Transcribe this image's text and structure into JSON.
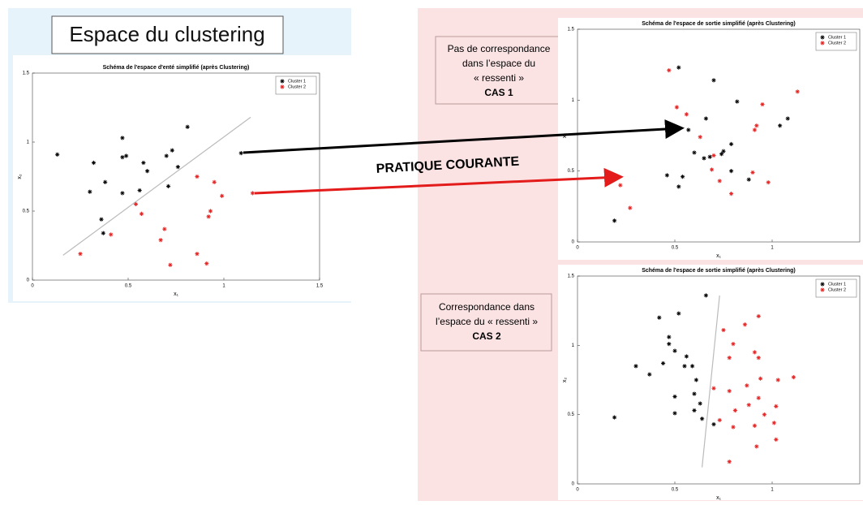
{
  "slide": {
    "heading": "Espace du clustering",
    "arrow_label": "PRATIQUE COURANTE",
    "cases": [
      {
        "lines": [
          "Pas de correspondance",
          "dans l’espace du",
          "« ressenti »"
        ],
        "label": "CAS 1"
      },
      {
        "lines": [
          "Correspondance dans",
          "l’espace du « ressenti »"
        ],
        "label": "CAS 2"
      }
    ]
  },
  "chart_data": [
    {
      "type": "scatter",
      "title": "Schéma de l'espace d'enté simplifié (après Clustering)",
      "xlabel": "x₁",
      "ylabel": "x₂",
      "xlim": [
        0,
        1.5
      ],
      "ylim": [
        0,
        1.5
      ],
      "xticks": [
        0,
        0.5,
        1,
        1.5
      ],
      "yticks": [
        0,
        0.5,
        1,
        1.5
      ],
      "legend": "upper right",
      "series": [
        {
          "name": "Cluster 1",
          "color": "#000000",
          "x": [
            0.13,
            0.32,
            0.47,
            0.49,
            0.47,
            0.38,
            0.3,
            0.36,
            0.37,
            0.47,
            0.56,
            0.58,
            0.6,
            0.7,
            0.73,
            0.76,
            0.71,
            0.81,
            1.09
          ],
          "y": [
            0.91,
            0.85,
            1.03,
            0.9,
            0.89,
            0.71,
            0.64,
            0.44,
            0.34,
            0.63,
            0.65,
            0.85,
            0.79,
            0.9,
            0.94,
            0.82,
            0.68,
            1.11,
            0.92
          ]
        },
        {
          "name": "Cluster 2",
          "color": "#e52222",
          "x": [
            0.25,
            0.41,
            0.54,
            0.57,
            0.67,
            0.69,
            0.72,
            0.86,
            0.95,
            0.99,
            0.93,
            0.92,
            0.86,
            0.91,
            1.15
          ],
          "y": [
            0.19,
            0.33,
            0.55,
            0.48,
            0.29,
            0.37,
            0.11,
            0.75,
            0.71,
            0.61,
            0.5,
            0.46,
            0.19,
            0.12,
            0.63
          ]
        }
      ],
      "separator": {
        "x": [
          0.16,
          1.14
        ],
        "y": [
          0.18,
          1.18
        ]
      }
    },
    {
      "type": "scatter",
      "title": "Schéma de l'espace de sortie simplifié (après Clustering)",
      "xlabel": "x₁",
      "ylabel": "x₂",
      "xlim": [
        0,
        1.45
      ],
      "ylim": [
        0,
        1.5
      ],
      "xticks": [
        0,
        0.5,
        1
      ],
      "yticks": [
        0,
        0.5,
        1,
        1.5
      ],
      "legend": "upper right",
      "series": [
        {
          "name": "Cluster 1",
          "color": "#000000",
          "x": [
            0.19,
            0.46,
            0.52,
            0.54,
            0.57,
            0.6,
            0.52,
            0.7,
            0.66,
            0.82,
            0.79,
            0.74,
            0.75,
            0.68,
            0.79,
            0.88,
            1.04,
            1.08,
            0.65
          ],
          "y": [
            0.15,
            0.47,
            0.39,
            0.46,
            0.79,
            0.63,
            1.23,
            1.14,
            0.87,
            0.99,
            0.69,
            0.62,
            0.64,
            0.6,
            0.5,
            0.44,
            0.82,
            0.87,
            0.59
          ]
        },
        {
          "name": "Cluster 2",
          "color": "#e52222",
          "x": [
            0.22,
            0.27,
            0.51,
            0.56,
            0.47,
            0.63,
            0.7,
            0.69,
            0.73,
            0.79,
            0.9,
            0.92,
            0.91,
            0.95,
            0.98,
            1.13
          ],
          "y": [
            0.4,
            0.24,
            0.95,
            0.9,
            1.21,
            0.74,
            0.61,
            0.51,
            0.43,
            0.34,
            0.49,
            0.82,
            0.79,
            0.97,
            0.42,
            1.06
          ]
        }
      ]
    },
    {
      "type": "scatter",
      "title": "Schéma de l'espace de sortie simplifié (après Clustering)",
      "xlabel": "x₁",
      "ylabel": "x₂",
      "xlim": [
        0,
        1.45
      ],
      "ylim": [
        0,
        1.5
      ],
      "xticks": [
        0,
        0.5,
        1
      ],
      "yticks": [
        0,
        0.5,
        1,
        1.5
      ],
      "legend": "upper right",
      "series": [
        {
          "name": "Cluster 1",
          "color": "#000000",
          "x": [
            0.19,
            0.3,
            0.37,
            0.42,
            0.52,
            0.47,
            0.47,
            0.5,
            0.56,
            0.44,
            0.55,
            0.59,
            0.5,
            0.5,
            0.61,
            0.6,
            0.63,
            0.66,
            0.64,
            0.7,
            0.6
          ],
          "y": [
            0.48,
            0.85,
            0.79,
            1.2,
            1.23,
            1.06,
            1.01,
            0.96,
            0.92,
            0.87,
            0.85,
            0.85,
            0.63,
            0.51,
            0.75,
            0.65,
            0.58,
            1.36,
            0.47,
            0.43,
            0.53
          ]
        },
        {
          "name": "Cluster 2",
          "color": "#e52222",
          "x": [
            0.7,
            0.75,
            0.8,
            0.86,
            0.73,
            0.78,
            0.93,
            0.91,
            0.93,
            0.78,
            0.81,
            0.8,
            0.78,
            0.87,
            0.88,
            0.93,
            0.94,
            0.96,
            0.91,
            0.92,
            1.03,
            1.02,
            1.01,
            1.02,
            1.11
          ],
          "y": [
            0.69,
            1.11,
            1.01,
            1.15,
            0.46,
            0.91,
            1.21,
            0.95,
            0.91,
            0.67,
            0.53,
            0.41,
            0.16,
            0.71,
            0.57,
            0.62,
            0.76,
            0.5,
            0.42,
            0.27,
            0.75,
            0.56,
            0.44,
            0.32,
            0.77
          ]
        }
      ],
      "separator": {
        "x": [
          0.64,
          0.73
        ],
        "y": [
          0.12,
          1.36
        ]
      }
    }
  ]
}
